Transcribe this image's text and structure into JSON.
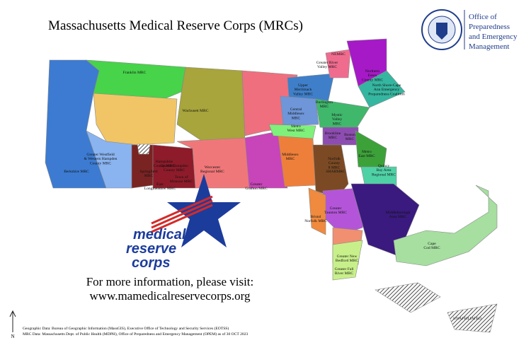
{
  "title": "Massachusetts Medical Reserve Corps (MRCs)",
  "office": [
    "Office of",
    "Preparedness",
    "and Emergency",
    "Management"
  ],
  "regions": [
    {
      "label": [
        "Franklin MRC"
      ]
    },
    {
      "label": [
        "Wachusett MRC"
      ]
    },
    {
      "label": [
        "Hampshire",
        "County MRC"
      ]
    },
    {
      "label": [
        "Greater Westfield",
        "& Western Hampden",
        "County MRC"
      ]
    },
    {
      "label": [
        "Berkshire MRC"
      ]
    },
    {
      "label": [
        "Springfield",
        "MRC"
      ]
    },
    {
      "label": [
        "East",
        "Longmeadow MRC"
      ]
    },
    {
      "label": [
        "Central Hampden",
        "County MRC"
      ]
    },
    {
      "label": [
        "Town of",
        "Monson MRC"
      ]
    },
    {
      "label": [
        "Worcester",
        "Regional MRC"
      ]
    },
    {
      "label": [
        "Greater",
        "Grafton MRC"
      ]
    },
    {
      "label": [
        "Middlesex",
        "MRC"
      ]
    },
    {
      "label": [
        "Upper",
        "Merrimack",
        "Valley MRC"
      ]
    },
    {
      "label": [
        "Greater River",
        "Valley MRC"
      ]
    },
    {
      "label": [
        "NEMRC"
      ]
    },
    {
      "label": [
        "Northern",
        "Essex",
        "County MRC"
      ]
    },
    {
      "label": [
        "North Shore-Cape",
        "Ann Emergency",
        "Preparedness Coalition"
      ]
    },
    {
      "label": [
        "Burlington",
        "MRC"
      ]
    },
    {
      "label": [
        "Central",
        "Middlesex",
        "MRC"
      ]
    },
    {
      "label": [
        "Mystic",
        "Valley",
        "MRC"
      ]
    },
    {
      "label": [
        "Metro",
        "West MRC"
      ]
    },
    {
      "label": [
        "Brookline",
        "MRC"
      ]
    },
    {
      "label": [
        "Boston",
        "MRC"
      ]
    },
    {
      "label": [
        "Metro",
        "East MRC"
      ]
    },
    {
      "label": [
        "Norfolk",
        "County",
        "8 MRC"
      ]
    },
    {
      "label": [
        "SHARMRC"
      ]
    },
    {
      "label": [
        "Quincy",
        "Bay Area",
        "Regional MRC"
      ]
    },
    {
      "label": [
        "Greater",
        "Taunton MRC"
      ]
    },
    {
      "label": [
        "Bristol",
        "Norfolk MRC"
      ]
    },
    {
      "label": [
        "Middleborough",
        "Area MRC"
      ]
    },
    {
      "label": [
        "Greater New",
        "Bedford MRC"
      ]
    },
    {
      "label": [
        "Greater Fall",
        "River MRC"
      ]
    },
    {
      "label": [
        "Cape",
        "Cod MRC"
      ]
    },
    {
      "label": [
        "UNAFFILIATED"
      ]
    }
  ],
  "logo": [
    "medical",
    "reserve",
    "corps"
  ],
  "info": [
    "For more information, please visit:",
    "www.mamedicalreservecorps.org"
  ],
  "north": "N",
  "sources": [
    "Geographic Data: Bureau of Geographic Information (MassGIS), Executive Office of Technology and Security Services (EOTSS)",
    "MRC Data: Massachusetts Dept. of Public Health (MDPH), Office of Preparedness and Emergency Management (OPEM) as of 30 OCT 2023"
  ]
}
